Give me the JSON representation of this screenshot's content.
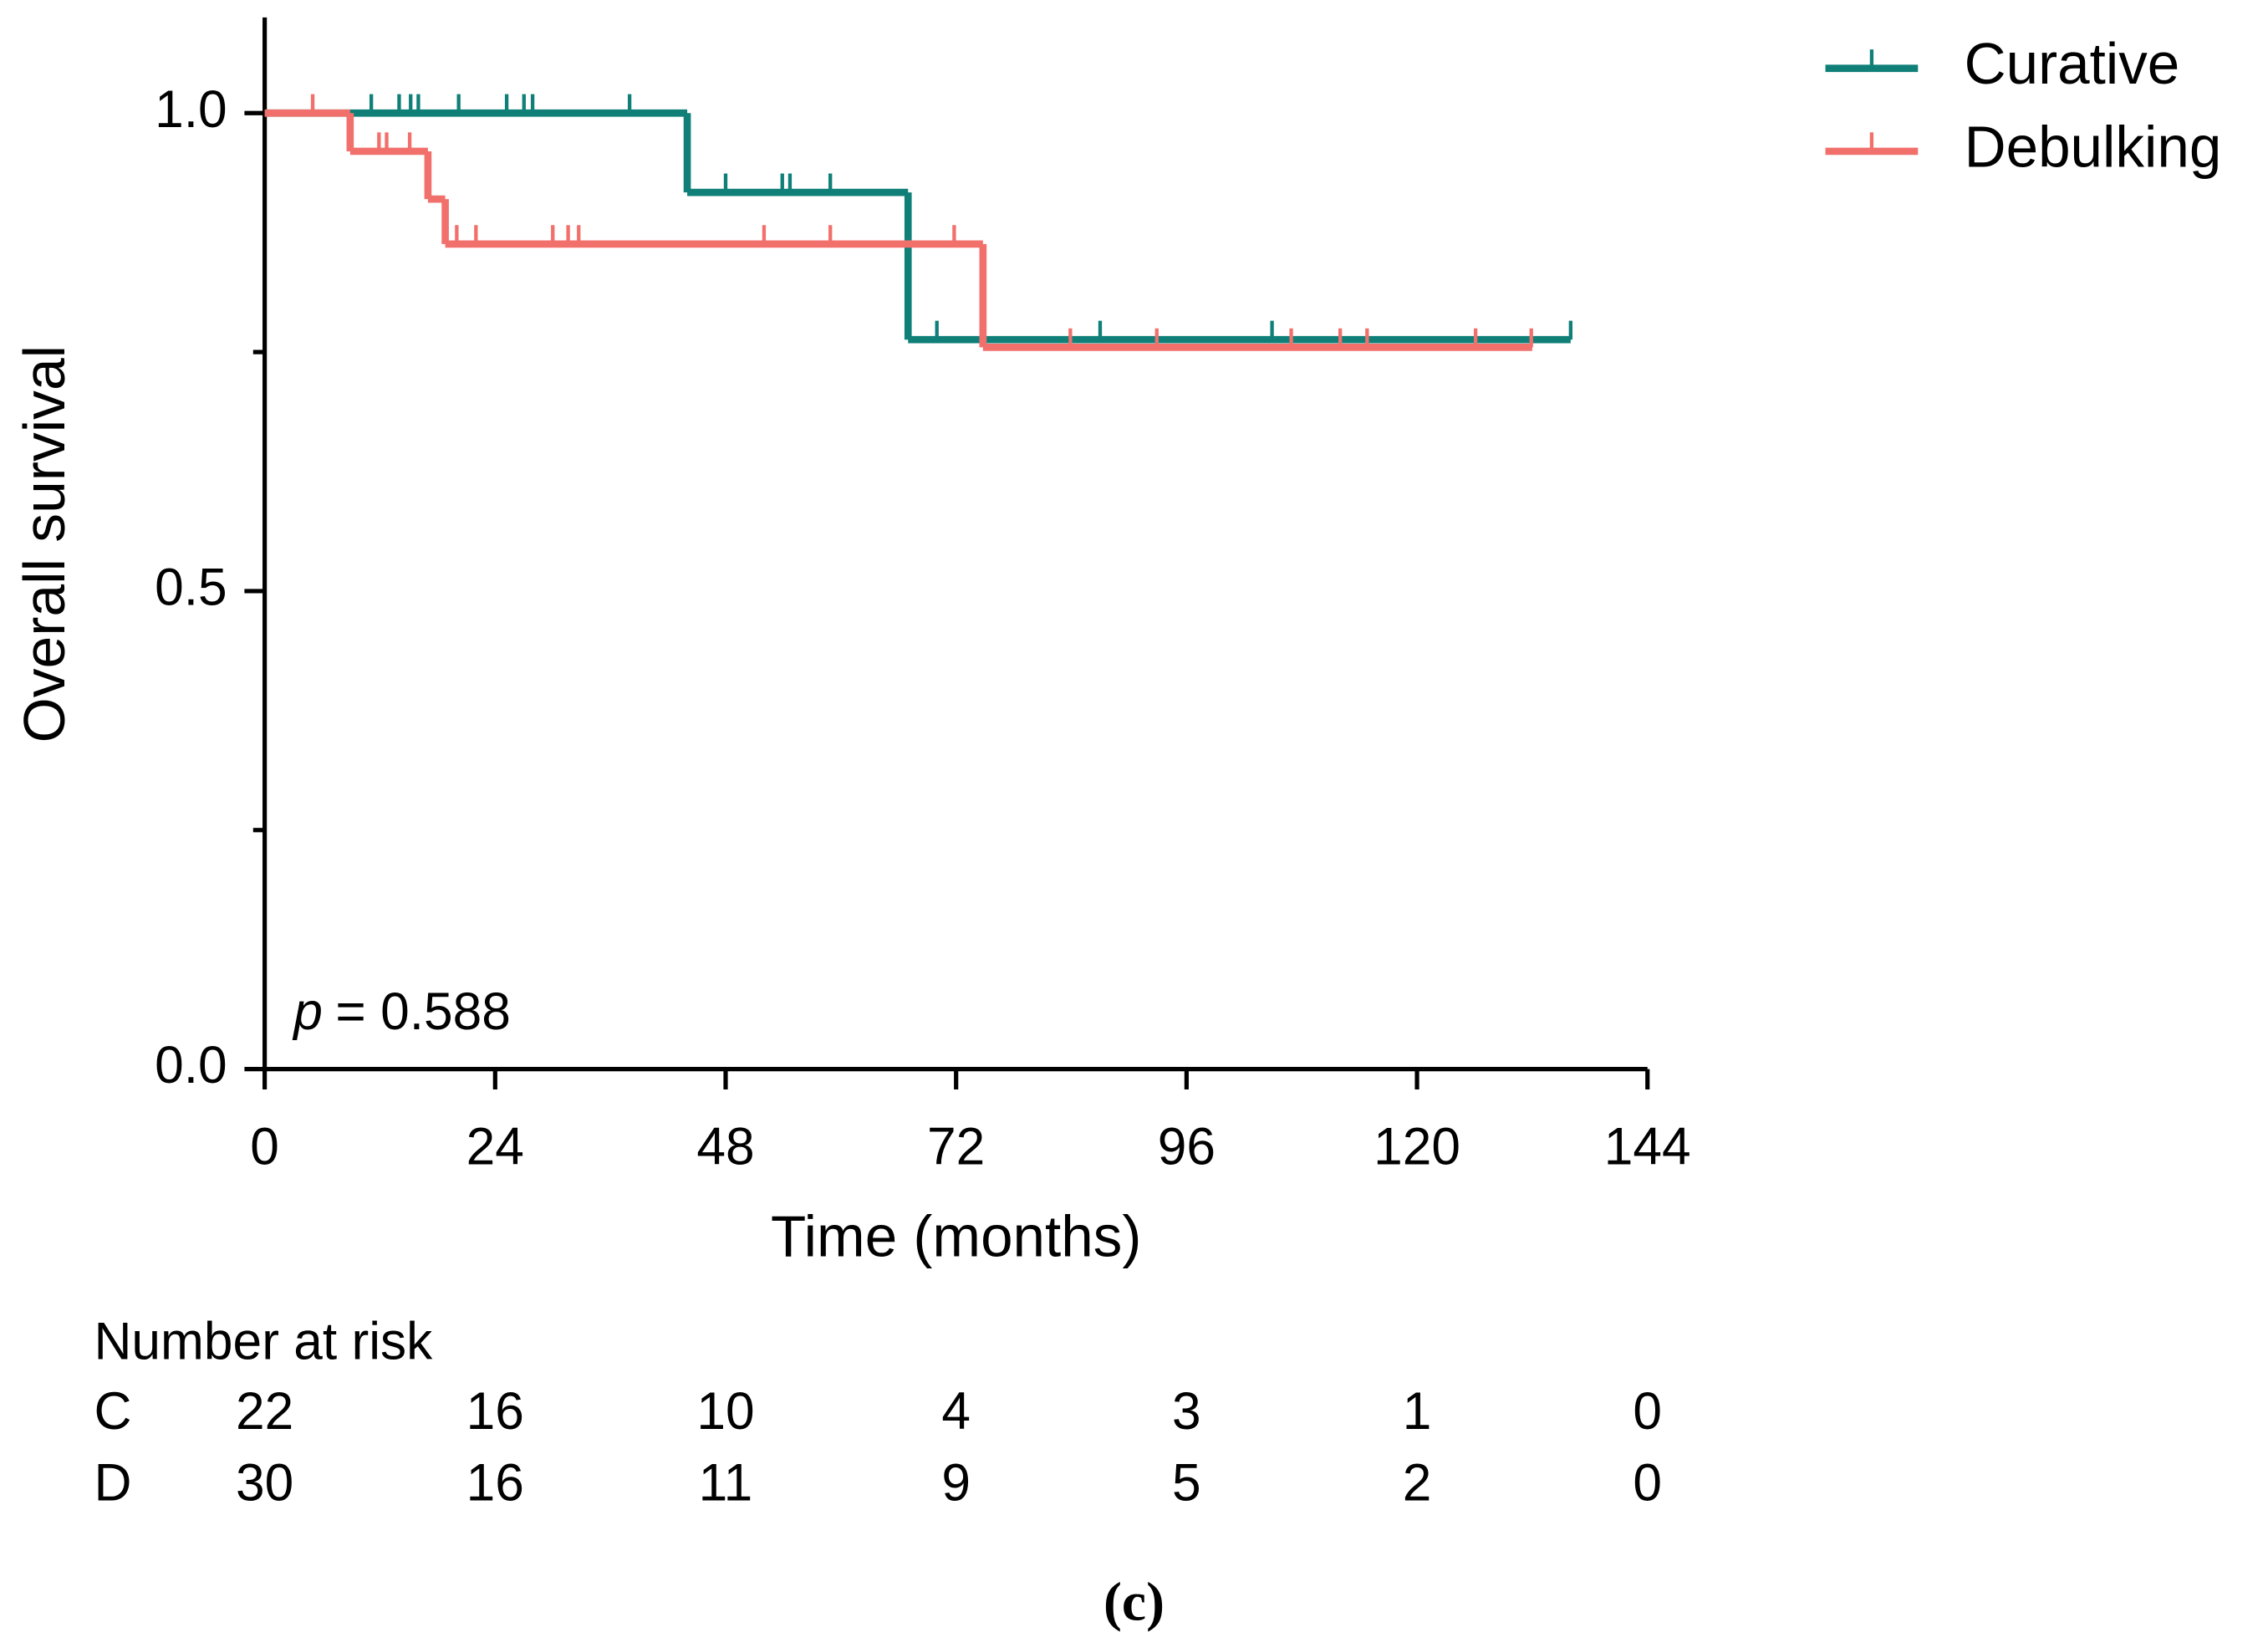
{
  "chart_data": {
    "type": "kaplan-meier",
    "x_label": "Time (months)",
    "y_label": "Overall survival",
    "xlim": [
      0,
      144
    ],
    "xticks": [
      0,
      24,
      48,
      72,
      96,
      120,
      144
    ],
    "ylim": [
      0,
      1.1
    ],
    "yticks": [
      {
        "value": 0,
        "label": "0.0"
      },
      {
        "value": 0.5,
        "label": "0.5"
      },
      {
        "value": 1,
        "label": "1.0"
      }
    ],
    "yminor_ticks": [
      0.25,
      0.75
    ],
    "legend_position": "upper right",
    "p_symbol": "p",
    "p_text": "= 0.588",
    "caption": "(c)",
    "series": [
      {
        "name": "Curative",
        "color": "#0f7f78",
        "times": [
          0,
          44,
          67,
          136
        ],
        "values": [
          1,
          0.917,
          0.763,
          0.763
        ],
        "censor_times": [
          11.1,
          14,
          15.2,
          16,
          20.2,
          25.2,
          27,
          27.9,
          38,
          48,
          53.9,
          54.7,
          58.9,
          70,
          87,
          104.9,
          136
        ],
        "censor_values": [
          1,
          1,
          1,
          1,
          1,
          1,
          1,
          1,
          1,
          0.917,
          0.917,
          0.917,
          0.917,
          0.763,
          0.763,
          0.763,
          0.763
        ]
      },
      {
        "name": "Debulking",
        "color": "#f2706b",
        "times": [
          0,
          8.9,
          17,
          18.8,
          74.8,
          132
        ],
        "values": [
          1,
          0.96,
          0.91,
          0.863,
          0.755,
          0.755
        ],
        "censor_times": [
          5,
          11.9,
          12.7,
          15.1,
          20,
          22,
          30,
          31.6,
          32.7,
          52,
          58.9,
          71.8,
          83.9,
          92.9,
          106.9,
          112,
          114.8,
          126.1,
          131.9
        ],
        "censor_values": [
          1,
          0.96,
          0.96,
          0.96,
          0.863,
          0.863,
          0.863,
          0.863,
          0.863,
          0.863,
          0.863,
          0.863,
          0.755,
          0.755,
          0.755,
          0.755,
          0.755,
          0.755,
          0.755
        ]
      }
    ],
    "risk_table": {
      "title": "Number at risk",
      "rows": [
        {
          "label": "C",
          "values": [
            22,
            16,
            10,
            4,
            3,
            1,
            0
          ]
        },
        {
          "label": "D",
          "values": [
            30,
            16,
            11,
            9,
            5,
            2,
            0
          ]
        }
      ]
    }
  }
}
